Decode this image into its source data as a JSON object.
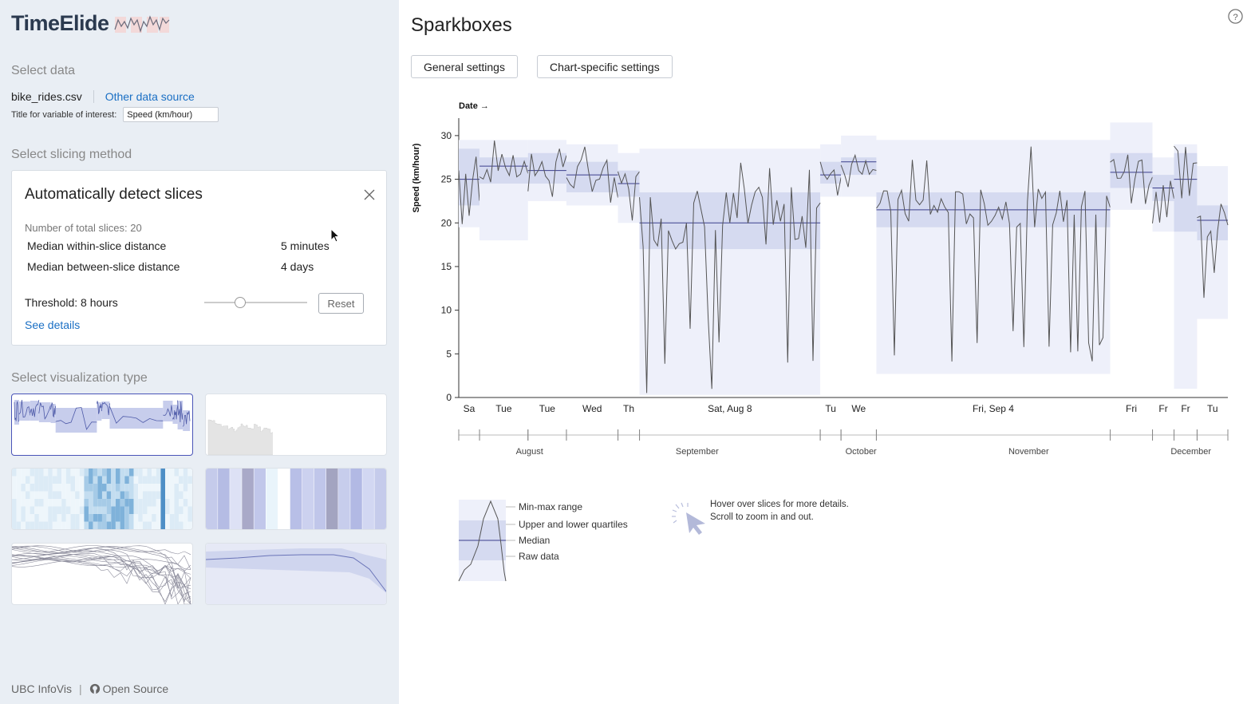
{
  "app": {
    "name": "TimeElide"
  },
  "sidebar": {
    "select_data_title": "Select data",
    "file_name": "bike_rides.csv",
    "other_source_label": "Other data source",
    "variable_label": "Title for variable of interest:",
    "variable_value": "Speed (km/hour)",
    "slicing_title": "Select slicing method",
    "slicing_card": {
      "title": "Automatically detect slices",
      "total_slices": "Number of total slices: 20",
      "stats": [
        {
          "label": "Median within-slice distance",
          "value": "5 minutes"
        },
        {
          "label": "Median between-slice distance",
          "value": "4 days"
        }
      ],
      "threshold_label": "Threshold: 8 hours",
      "threshold_fraction": 0.35,
      "reset_label": "Reset",
      "details_label": "See details"
    },
    "viz_title": "Select visualization type",
    "viz_types": [
      "sparkboxes",
      "bar",
      "heatmap",
      "stripes",
      "overlay-lines",
      "band"
    ]
  },
  "footer": {
    "lab": "UBC InfoVis",
    "sep": "|",
    "source": "Open Source"
  },
  "main": {
    "title": "Sparkboxes",
    "tabs": [
      "General settings",
      "Chart-specific settings"
    ],
    "legend": {
      "items": [
        "Min-max range",
        "Upper and lower quartiles",
        "Median",
        "Raw data"
      ],
      "hint_line1": "Hover over slices for more details.",
      "hint_line2": "Scroll to zoom in and out."
    }
  },
  "colors": {
    "accent": "#1a6fc4",
    "band_light": "#eef0fa",
    "band_mid": "#d5daf0",
    "median": "#3b3f8c",
    "line": "#555555"
  },
  "chart_data": {
    "type": "sparkboxes",
    "title": "",
    "xlabel": "Date →",
    "ylabel": "Speed (km/hour)",
    "ylim": [
      0,
      32
    ],
    "yticks": [
      0,
      5,
      10,
      15,
      20,
      25,
      30
    ],
    "slice_labels": [
      "Sa",
      "Tue",
      "Tue",
      "Wed",
      "Th",
      "Sat, Aug 8",
      "Tu",
      "We",
      "Fri, Sep 4",
      "Fri",
      "Fr",
      "Fr",
      "Tu"
    ],
    "slices": [
      {
        "label": "Sa",
        "t0": 0.0,
        "t1": 0.027,
        "min": 19.5,
        "q1": 22.0,
        "median": 25.0,
        "q3": 28.5,
        "max": 29.5
      },
      {
        "label": "Tue",
        "t0": 0.027,
        "t1": 0.09,
        "min": 18.0,
        "q1": 24.5,
        "median": 26.5,
        "q3": 27.5,
        "max": 29.5
      },
      {
        "label": "Tue",
        "t0": 0.09,
        "t1": 0.14,
        "min": 22.5,
        "q1": 24.5,
        "median": 26.0,
        "q3": 28.0,
        "max": 29.5
      },
      {
        "label": "Wed",
        "t0": 0.14,
        "t1": 0.207,
        "min": 22.0,
        "q1": 23.5,
        "median": 25.5,
        "q3": 27.0,
        "max": 29.0
      },
      {
        "label": "Th",
        "t0": 0.207,
        "t1": 0.235,
        "min": 20.0,
        "q1": 23.0,
        "median": 24.5,
        "q3": 26.0,
        "max": 28.0
      },
      {
        "label": "Sat, Aug 8",
        "t0": 0.235,
        "t1": 0.47,
        "min": 0.3,
        "q1": 17.0,
        "median": 20.0,
        "q3": 23.5,
        "max": 28.5
      },
      {
        "label": "Tu",
        "t0": 0.47,
        "t1": 0.497,
        "min": 23.0,
        "q1": 24.5,
        "median": 25.5,
        "q3": 27.0,
        "max": 29.0
      },
      {
        "label": "We",
        "t0": 0.497,
        "t1": 0.543,
        "min": 23.0,
        "q1": 25.5,
        "median": 27.0,
        "q3": 27.5,
        "max": 30.0
      },
      {
        "label": "Fri, Sep 4",
        "t0": 0.543,
        "t1": 0.847,
        "min": 2.7,
        "q1": 19.5,
        "median": 21.5,
        "q3": 23.5,
        "max": 29.5
      },
      {
        "label": "Fri",
        "t0": 0.847,
        "t1": 0.902,
        "min": 21.5,
        "q1": 24.0,
        "median": 25.8,
        "q3": 28.0,
        "max": 31.5
      },
      {
        "label": "Fr",
        "t0": 0.902,
        "t1": 0.93,
        "min": 19.0,
        "q1": 22.5,
        "median": 24.0,
        "q3": 25.5,
        "max": 27.5
      },
      {
        "label": "Fr",
        "t0": 0.93,
        "t1": 0.96,
        "min": 1.0,
        "q1": 19.0,
        "median": 25.0,
        "q3": 28.0,
        "max": 29.0
      },
      {
        "label": "Tu",
        "t0": 0.96,
        "t1": 1.0,
        "min": 9.0,
        "q1": 18.0,
        "median": 20.3,
        "q3": 22.0,
        "max": 26.5
      }
    ],
    "context_axis": {
      "months": [
        "August",
        "September",
        "October",
        "November",
        "December"
      ],
      "month_positions": [
        0.092,
        0.31,
        0.523,
        0.741,
        0.952
      ]
    }
  }
}
